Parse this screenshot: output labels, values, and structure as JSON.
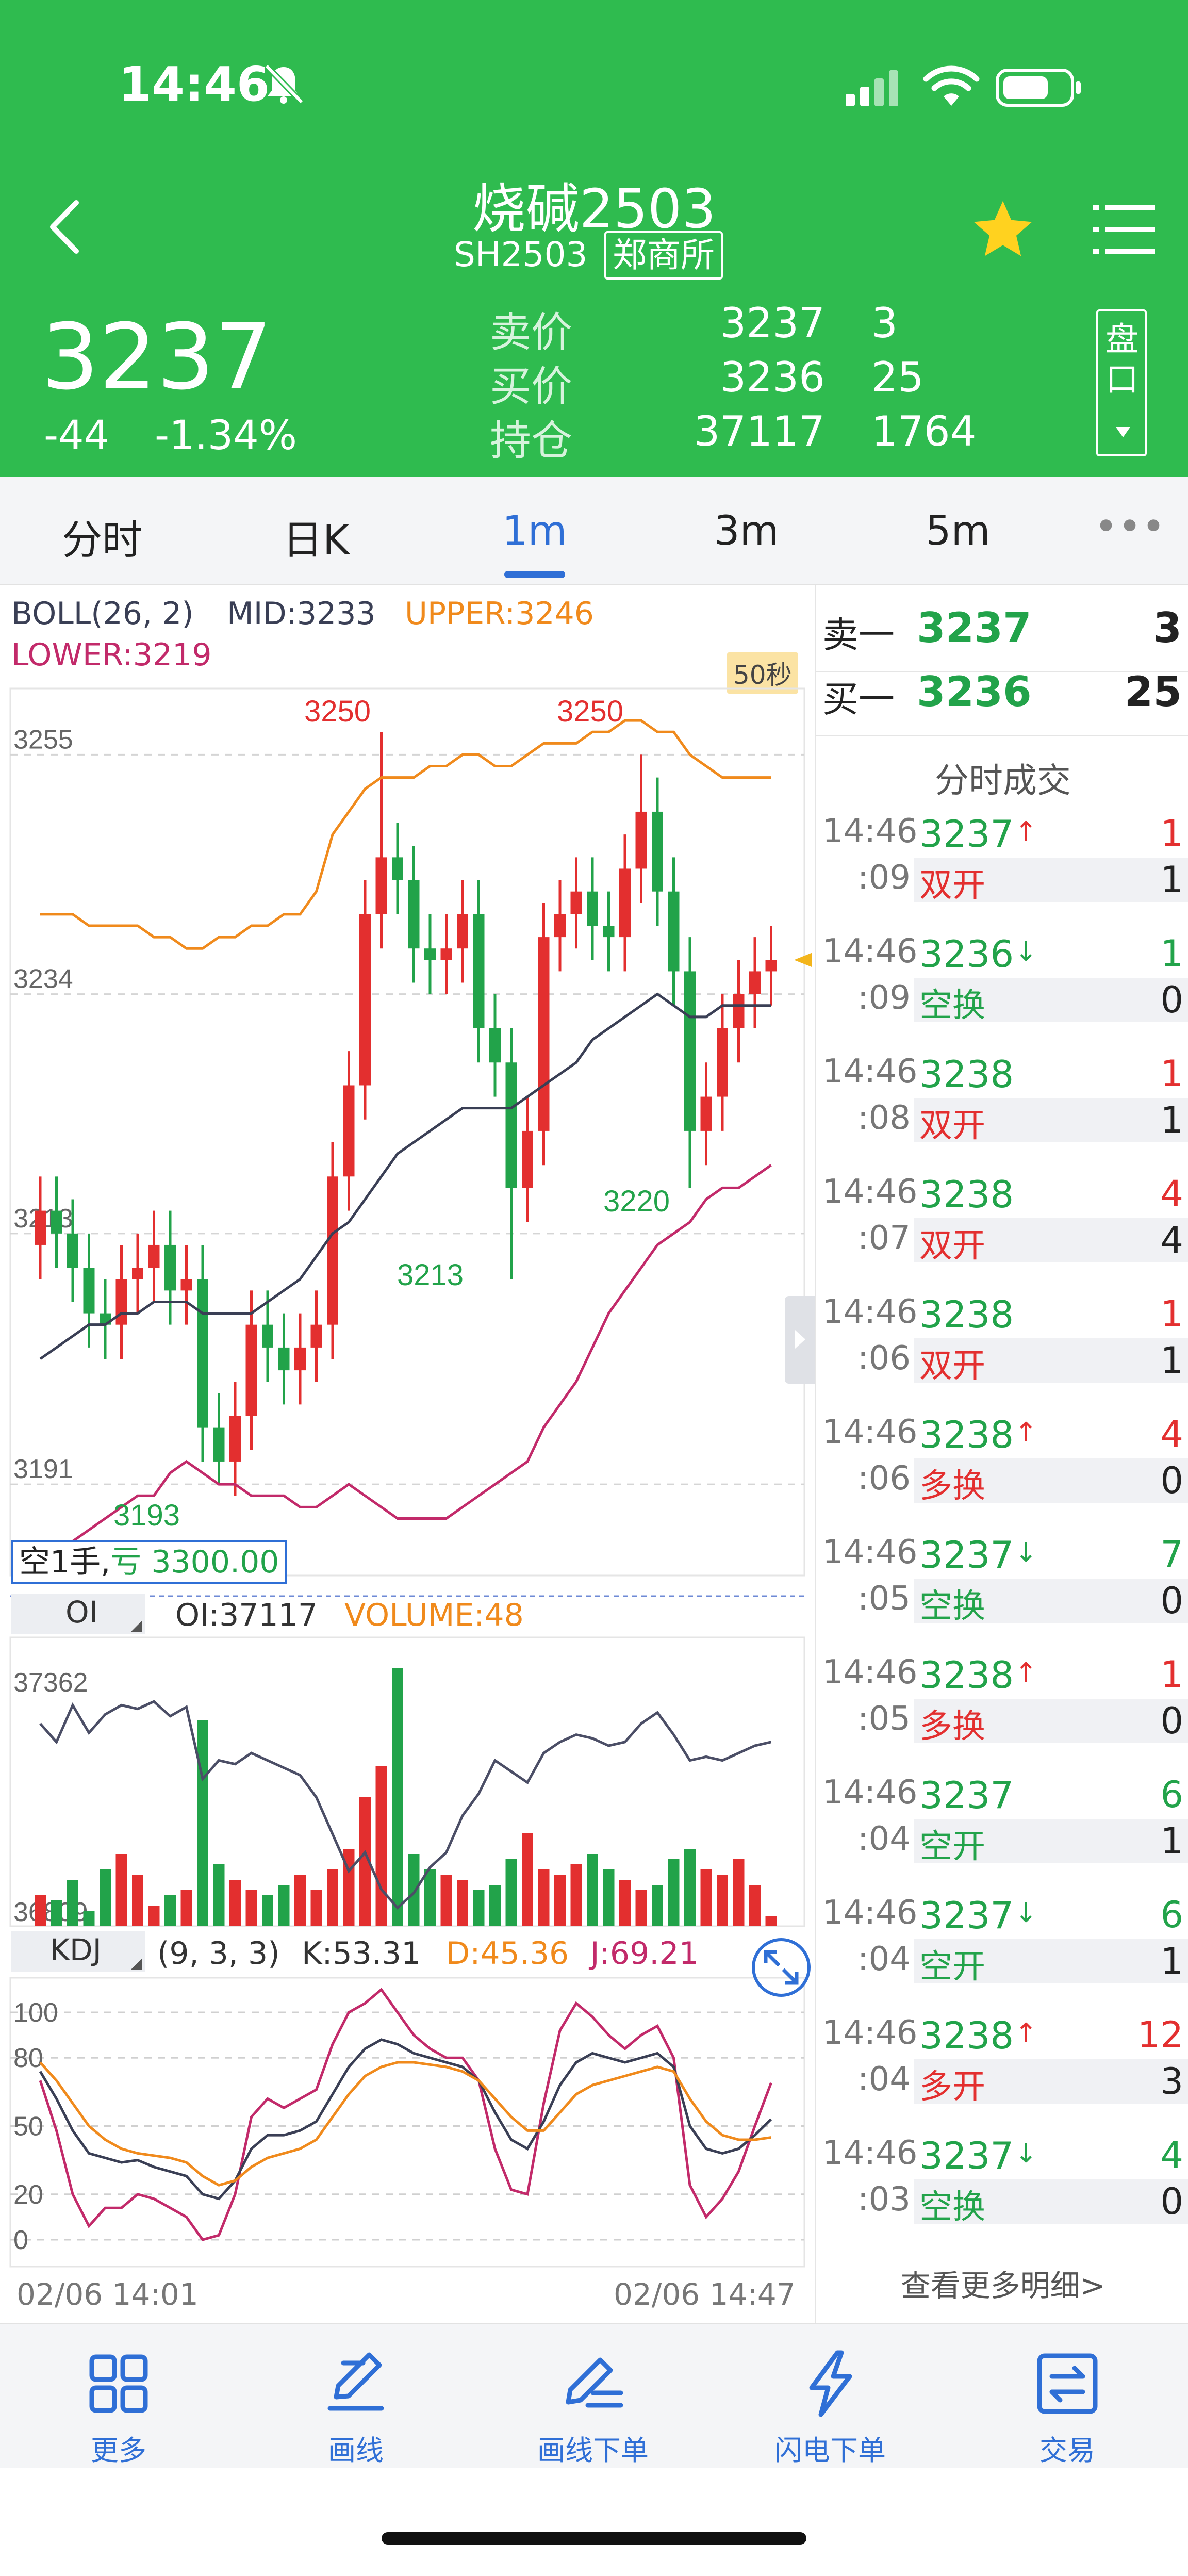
{
  "status_bar": {
    "time": "14:46"
  },
  "header": {
    "title": "烧碱2503",
    "code": "SH2503",
    "exchange": "郑商所",
    "last_price": "3237",
    "change": "-44",
    "change_pct": "-1.34%",
    "quote": [
      {
        "label": "卖价",
        "v1": "3237",
        "v2": "3"
      },
      {
        "label": "买价",
        "v1": "3236",
        "v2": "25"
      },
      {
        "label": "持仓",
        "v1": "37117",
        "v2": "1764"
      }
    ],
    "side_button": "盘口"
  },
  "tabs": [
    {
      "label": "分时",
      "active": false
    },
    {
      "label": "日K",
      "active": false
    },
    {
      "label": "1m",
      "active": true
    },
    {
      "label": "3m",
      "active": false
    },
    {
      "label": "5m",
      "active": false
    }
  ],
  "tabs_more": "•••",
  "main_chart": {
    "boll_label": "BOLL(26, 2)",
    "mid_label": "MID:3233",
    "upper_label": "UPPER:3246",
    "lower_label": "LOWER:3219",
    "timer_badge": "50秒",
    "y_ticks": [
      "3255",
      "3234",
      "3213",
      "3191"
    ],
    "annotations": [
      "3250",
      "3250",
      "3213",
      "3220",
      "3193"
    ],
    "position_badge_prefix": "空1手,",
    "position_badge_value": "亏 3300.00"
  },
  "oi_panel": {
    "tab": "OI",
    "oi_label": "OI:37117",
    "volume_label": "VOLUME:48",
    "y_ticks": [
      "37362",
      "36809"
    ]
  },
  "kdj_panel": {
    "tab": "KDJ",
    "params": "(9, 3, 3)",
    "k_label": "K:53.31",
    "d_label": "D:45.36",
    "j_label": "J:69.21",
    "y_ticks": [
      "100",
      "80",
      "50",
      "20",
      "0"
    ],
    "x_start": "02/06 14:01",
    "x_end": "02/06 14:47"
  },
  "order_book": {
    "ask_label": "卖一",
    "ask_price": "3237",
    "ask_vol": "3",
    "bid_label": "买一",
    "bid_price": "3236",
    "bid_vol": "25"
  },
  "trades_title": "分时成交",
  "trades": [
    {
      "time": "14:46",
      "price": "3237",
      "pc": "g",
      "arrow": "↑",
      "ac": "r",
      "vol": "1",
      "vc": "r",
      "sec": ":09",
      "type": "双开",
      "tc": "r",
      "open": "1"
    },
    {
      "time": "14:46",
      "price": "3236",
      "pc": "g",
      "arrow": "↓",
      "ac": "g",
      "vol": "1",
      "vc": "g",
      "sec": ":09",
      "type": "空换",
      "tc": "g",
      "open": "0"
    },
    {
      "time": "14:46",
      "price": "3238",
      "pc": "g",
      "arrow": "",
      "ac": "r",
      "vol": "1",
      "vc": "r",
      "sec": ":08",
      "type": "双开",
      "tc": "r",
      "open": "1"
    },
    {
      "time": "14:46",
      "price": "3238",
      "pc": "g",
      "arrow": "",
      "ac": "r",
      "vol": "4",
      "vc": "r",
      "sec": ":07",
      "type": "双开",
      "tc": "r",
      "open": "4"
    },
    {
      "time": "14:46",
      "price": "3238",
      "pc": "g",
      "arrow": "",
      "ac": "r",
      "vol": "1",
      "vc": "r",
      "sec": ":06",
      "type": "双开",
      "tc": "r",
      "open": "1"
    },
    {
      "time": "14:46",
      "price": "3238",
      "pc": "g",
      "arrow": "↑",
      "ac": "r",
      "vol": "4",
      "vc": "r",
      "sec": ":06",
      "type": "多换",
      "tc": "r",
      "open": "0"
    },
    {
      "time": "14:46",
      "price": "3237",
      "pc": "g",
      "arrow": "↓",
      "ac": "g",
      "vol": "7",
      "vc": "g",
      "sec": ":05",
      "type": "空换",
      "tc": "g",
      "open": "0"
    },
    {
      "time": "14:46",
      "price": "3238",
      "pc": "g",
      "arrow": "↑",
      "ac": "r",
      "vol": "1",
      "vc": "r",
      "sec": ":05",
      "type": "多换",
      "tc": "r",
      "open": "0"
    },
    {
      "time": "14:46",
      "price": "3237",
      "pc": "g",
      "arrow": "",
      "ac": "g",
      "vol": "6",
      "vc": "g",
      "sec": ":04",
      "type": "空开",
      "tc": "g",
      "open": "1"
    },
    {
      "time": "14:46",
      "price": "3237",
      "pc": "g",
      "arrow": "↓",
      "ac": "g",
      "vol": "6",
      "vc": "g",
      "sec": ":04",
      "type": "空开",
      "tc": "g",
      "open": "1"
    },
    {
      "time": "14:46",
      "price": "3238",
      "pc": "g",
      "arrow": "↑",
      "ac": "r",
      "vol": "12",
      "vc": "r",
      "sec": ":04",
      "type": "多开",
      "tc": "r",
      "open": "3"
    },
    {
      "time": "14:46",
      "price": "3237",
      "pc": "g",
      "arrow": "↓",
      "ac": "g",
      "vol": "4",
      "vc": "g",
      "sec": ":03",
      "type": "空换",
      "tc": "g",
      "open": "0"
    }
  ],
  "more_details": "查看更多明细>",
  "bottom_nav": [
    {
      "label": "更多",
      "icon": "grid-icon"
    },
    {
      "label": "画线",
      "icon": "draw-line-icon"
    },
    {
      "label": "画线下单",
      "icon": "draw-order-icon"
    },
    {
      "label": "闪电下单",
      "icon": "lightning-icon"
    },
    {
      "label": "交易",
      "icon": "trade-icon"
    }
  ],
  "colors": {
    "green": "#2fbb4f",
    "up": "#e32f2f",
    "down": "#22a34a",
    "accent": "#2f6fd6",
    "upper": "#f08a1c",
    "lower": "#c22a6a",
    "mid": "#3a3f55"
  }
}
